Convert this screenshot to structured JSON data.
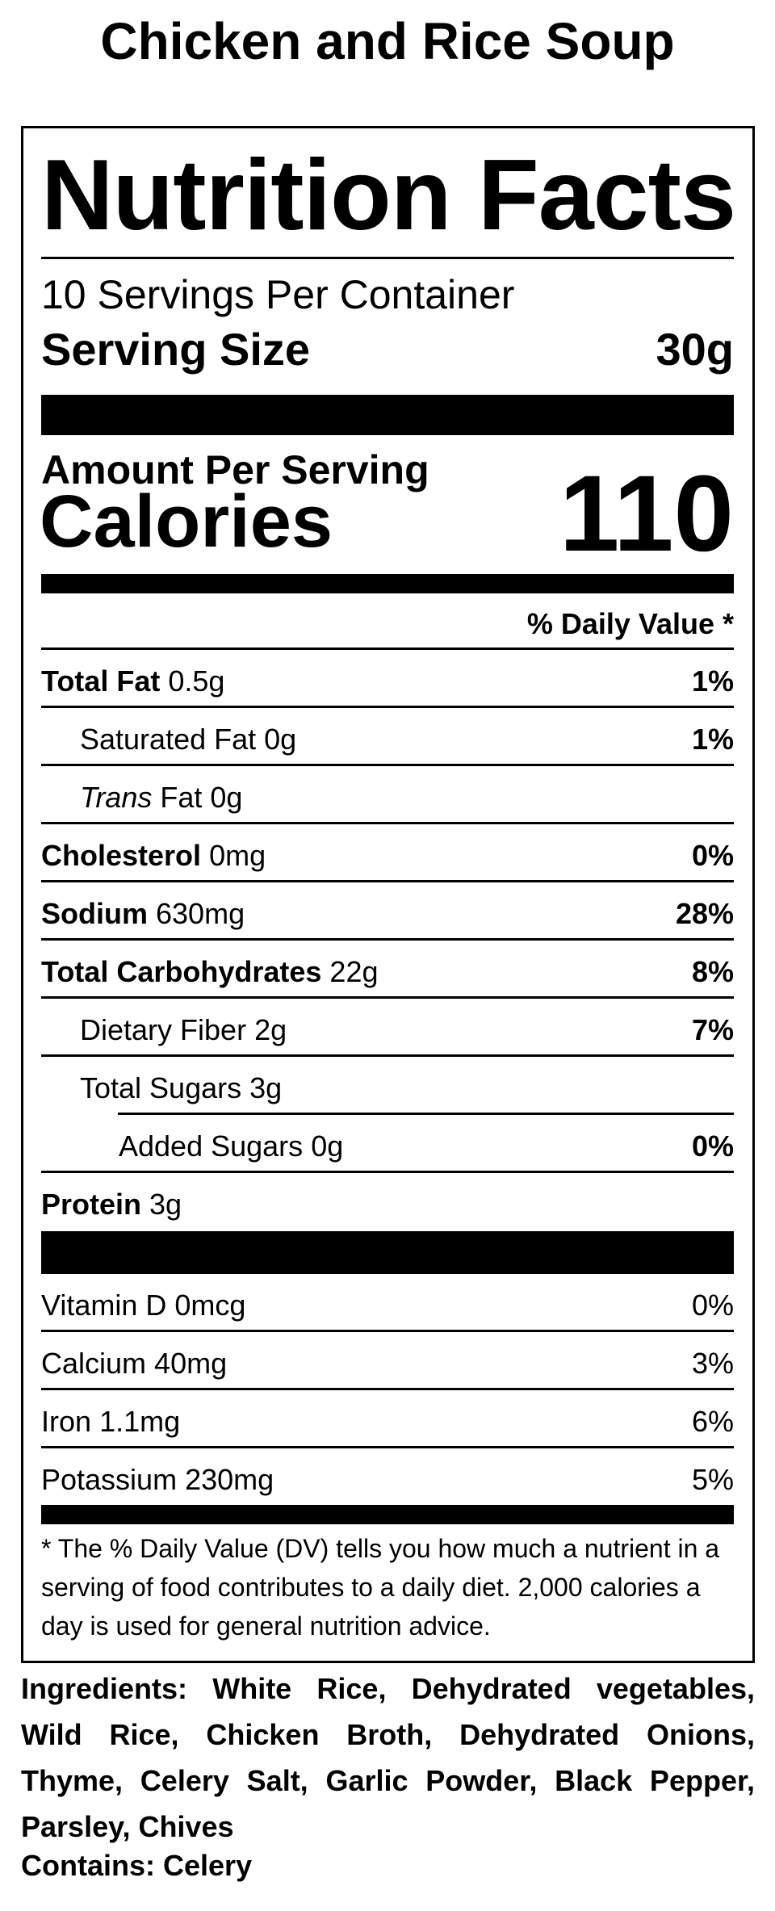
{
  "title": "Chicken and Rice Soup",
  "label": {
    "heading": "Nutrition Facts",
    "servings": "10 Servings Per Container",
    "serving_size_label": "Serving Size",
    "serving_size": "30g",
    "amount_per_serving": "Amount Per Serving",
    "calories_label": "Calories",
    "calories": 110,
    "daily_value_header": "% Daily Value *",
    "nutrients": [
      {
        "name": "Total Fat",
        "amount": "0.5g",
        "dv": "1%"
      },
      {
        "name": "Saturated Fat",
        "amount": "0g",
        "dv": "1%"
      },
      {
        "name_italic": "Trans",
        "name": "Fat",
        "amount": "0g"
      },
      {
        "name": "Cholesterol",
        "amount": "0mg",
        "dv": "0%"
      },
      {
        "name": "Sodium",
        "amount": "630mg",
        "dv": "28%"
      },
      {
        "name": "Total Carbohydrates",
        "amount": "22g",
        "dv": "8%"
      },
      {
        "name": "Dietary Fiber",
        "amount": "2g",
        "dv": "7%"
      },
      {
        "name": "Total Sugars",
        "amount": "3g"
      },
      {
        "name": "Added Sugars",
        "amount": "0g",
        "dv": "0%"
      },
      {
        "name": "Protein",
        "amount": "3g"
      }
    ],
    "vitamins": [
      {
        "name": "Vitamin D",
        "amount": "0mcg",
        "dv": "0%"
      },
      {
        "name": "Calcium",
        "amount": "40mg",
        "dv": "3%"
      },
      {
        "name": "Iron",
        "amount": "1.1mg",
        "dv": "6%"
      },
      {
        "name": "Potassium",
        "amount": "230mg",
        "dv": "5%"
      }
    ],
    "footnote": "* The % Daily Value (DV) tells you how much a nutrient in a serving of food contributes to a daily diet. 2,000 calories a day is used for general nutrition advice."
  },
  "ingredients": {
    "label": "Ingredients:",
    "text": "White Rice, Dehydrated vegetables, Wild Rice, Chicken Broth, Dehydrated Onions, Thyme, Celery Salt, Garlic Powder, Black Pepper, Parsley, Chives"
  },
  "contains": {
    "label": "Contains:",
    "text": "Celery"
  }
}
